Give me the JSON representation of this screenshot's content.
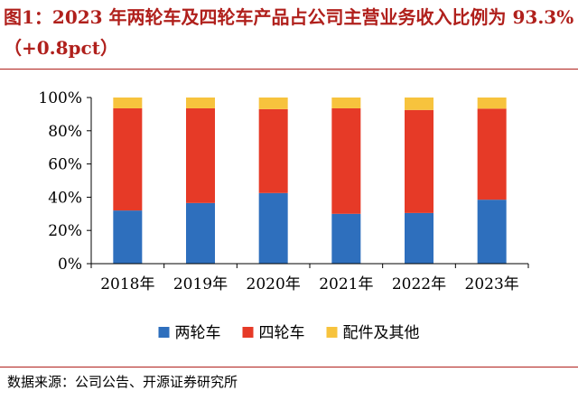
{
  "figure": {
    "title": "图1：2023 年两轮车及四轮车产品占公司主营业务收入比例为 93.3%（+0.8pct）",
    "source": "数据来源：公司公告、开源证券研究所"
  },
  "chart_data": {
    "type": "bar",
    "stacked": true,
    "categories": [
      "2018年",
      "2019年",
      "2020年",
      "2021年",
      "2022年",
      "2023年"
    ],
    "series": [
      {
        "name": "两轮车",
        "color": "#2e6fbd",
        "values": [
          0.32,
          0.365,
          0.425,
          0.3,
          0.305,
          0.385
        ]
      },
      {
        "name": "四轮车",
        "color": "#e63a27",
        "values": [
          0.615,
          0.57,
          0.505,
          0.635,
          0.62,
          0.548
        ]
      },
      {
        "name": "配件及其他",
        "color": "#f7c33d",
        "values": [
          0.065,
          0.065,
          0.07,
          0.065,
          0.075,
          0.067
        ]
      }
    ],
    "yticks": [
      "0%",
      "20%",
      "40%",
      "60%",
      "80%",
      "100%"
    ],
    "ylim": [
      0,
      1
    ],
    "legend_position": "bottom",
    "grid": false
  }
}
